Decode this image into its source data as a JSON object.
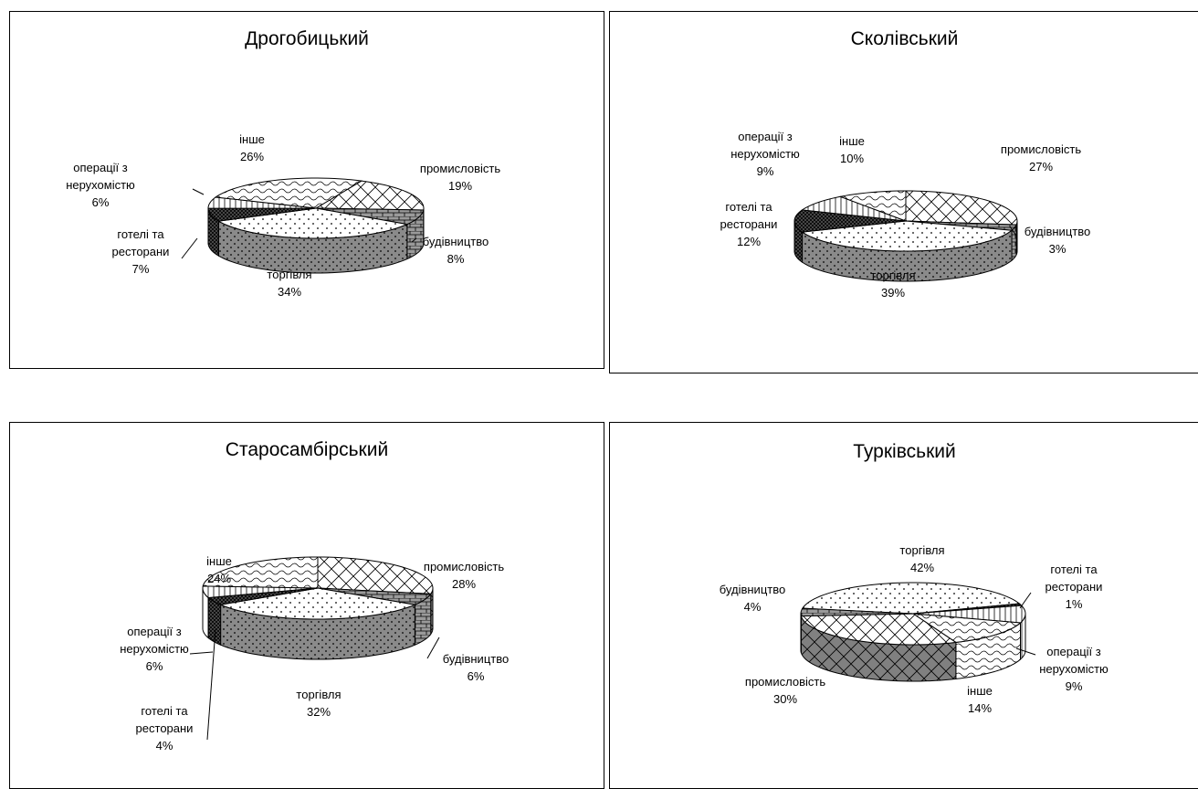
{
  "chart_data": [
    {
      "type": "pie",
      "title": "Дрогобицький",
      "slices": [
        {
          "category": "промисловість",
          "value": 19,
          "label": "19%"
        },
        {
          "category": "будівництво",
          "value": 8,
          "label": "8%"
        },
        {
          "category": "торгівля",
          "value": 34,
          "label": "34%"
        },
        {
          "category": "готелі та ресторани",
          "value": 7,
          "label": "7%"
        },
        {
          "category": "операції з нерухомістю",
          "value": 6,
          "label": "6%"
        },
        {
          "category": "інше",
          "value": 26,
          "label": "26%"
        }
      ]
    },
    {
      "type": "pie",
      "title": "Сколівський",
      "slices": [
        {
          "category": "промисловість",
          "value": 27,
          "label": "27%"
        },
        {
          "category": "будівництво",
          "value": 3,
          "label": "3%"
        },
        {
          "category": "торгівля",
          "value": 39,
          "label": "39%"
        },
        {
          "category": "готелі та ресторани",
          "value": 12,
          "label": "12%"
        },
        {
          "category": "операції з нерухомістю",
          "value": 9,
          "label": "9%"
        },
        {
          "category": "інше",
          "value": 10,
          "label": "10%"
        }
      ]
    },
    {
      "type": "pie",
      "title": "Старосамбірський",
      "slices": [
        {
          "category": "промисловість",
          "value": 28,
          "label": "28%"
        },
        {
          "category": "будівництво",
          "value": 6,
          "label": "6%"
        },
        {
          "category": "торгівля",
          "value": 32,
          "label": "32%"
        },
        {
          "category": "готелі та ресторани",
          "value": 4,
          "label": "4%"
        },
        {
          "category": "операції з нерухомістю",
          "value": 6,
          "label": "6%"
        },
        {
          "category": "інше",
          "value": 24,
          "label": "24%"
        }
      ]
    },
    {
      "type": "pie",
      "title": "Турківський",
      "slices": [
        {
          "category": "торгівля",
          "value": 42,
          "label": "42%"
        },
        {
          "category": "готелі та ресторани",
          "value": 1,
          "label": "1%"
        },
        {
          "category": "операції з нерухомістю",
          "value": 9,
          "label": "9%"
        },
        {
          "category": "інше",
          "value": 14,
          "label": "14%"
        },
        {
          "category": "промисловість",
          "value": 30,
          "label": "30%"
        },
        {
          "category": "будівництво",
          "value": 4,
          "label": "4%"
        }
      ]
    }
  ]
}
